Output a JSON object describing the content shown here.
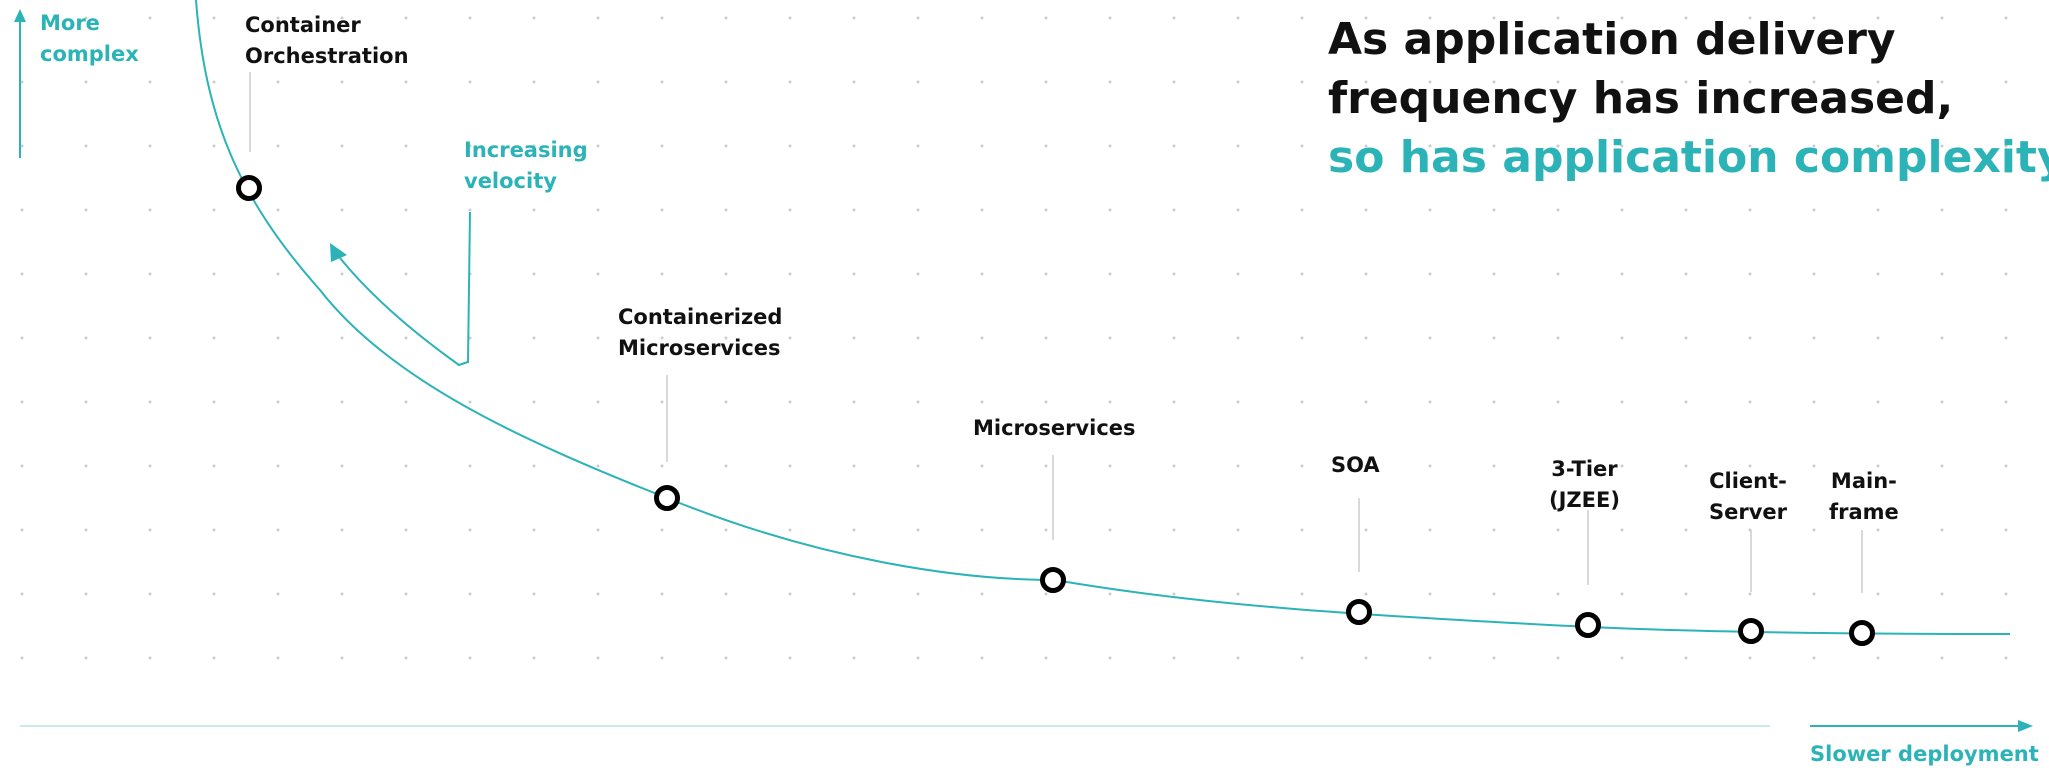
{
  "colors": {
    "accent": "#2bb3b7",
    "text": "#111111",
    "grid_dot": "#c9cdd2",
    "axis": "#cfe8ea"
  },
  "headline": {
    "line1": "As application delivery",
    "line2": "frequency has increased,",
    "line3": "so has application complexity."
  },
  "y_axis": {
    "line1": "More",
    "line2": "complex"
  },
  "x_axis": {
    "label": "Slower deployment"
  },
  "velocity": {
    "line1": "Increasing",
    "line2": "velocity"
  },
  "stages": [
    {
      "id": "container-orchestration",
      "lines": [
        "Container",
        "Orchestration"
      ]
    },
    {
      "id": "containerized-microservices",
      "lines": [
        "Containerized",
        "Microservices"
      ]
    },
    {
      "id": "microservices",
      "lines": [
        "Microservices"
      ]
    },
    {
      "id": "soa",
      "lines": [
        "SOA"
      ]
    },
    {
      "id": "3-tier",
      "lines": [
        "3-Tier",
        "(JZEE)"
      ]
    },
    {
      "id": "client-server",
      "lines": [
        "Client-",
        "Server"
      ]
    },
    {
      "id": "mainframe",
      "lines": [
        "Main-",
        "frame"
      ]
    }
  ]
}
